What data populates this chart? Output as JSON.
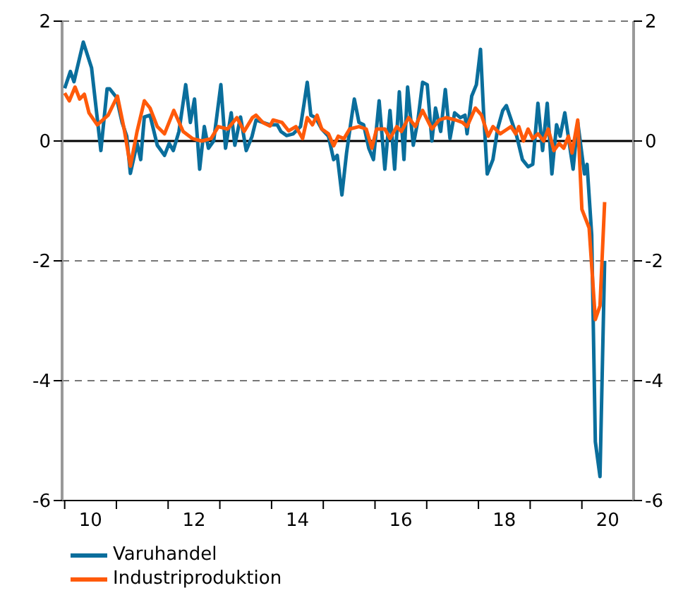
{
  "chart_data": {
    "type": "line",
    "xlim": [
      9.45,
      20.5
    ],
    "xticks": [
      {
        "value": 9.5,
        "label": null
      },
      10,
      {
        "value": 10.5,
        "label": null
      },
      {
        "value": 11.5,
        "label": null
      },
      12,
      {
        "value": 12.5,
        "label": null
      },
      {
        "value": 13.5,
        "label": null
      },
      14,
      {
        "value": 14.5,
        "label": null
      },
      {
        "value": 15.5,
        "label": null
      },
      16,
      {
        "value": 16.5,
        "label": null
      },
      {
        "value": 17.5,
        "label": null
      },
      18,
      {
        "value": 18.5,
        "label": null
      },
      {
        "value": 19.5,
        "label": null
      },
      20
    ],
    "ylim": [
      -6,
      2
    ],
    "yticks": [
      -6,
      -4,
      -2,
      0,
      2
    ],
    "y2lim": [
      -6,
      2
    ],
    "y2ticks": [
      -6,
      -4,
      -2,
      0,
      2
    ],
    "grid": "y",
    "legend": "bottom left",
    "line_style": "solid",
    "marker": "none",
    "ref_lines": [
      {
        "axis": "y",
        "value": 0,
        "color": "#000000"
      }
    ],
    "series": [
      {
        "name": "Varuhandel",
        "color": "#0a6e9c",
        "x": [
          9.5,
          9.61,
          9.68,
          9.86,
          10.02,
          10.2,
          10.32,
          10.37,
          10.5,
          10.61,
          10.7,
          10.77,
          10.9,
          10.97,
          11.04,
          11.15,
          11.29,
          11.43,
          11.52,
          11.6,
          11.71,
          11.84,
          11.93,
          12.01,
          12.11,
          12.2,
          12.28,
          12.38,
          12.52,
          12.61,
          12.72,
          12.79,
          12.9,
          13.01,
          13.12,
          13.2,
          13.33,
          13.47,
          13.61,
          13.68,
          13.79,
          13.92,
          14.06,
          14.13,
          14.19,
          14.26,
          14.35,
          14.47,
          14.6,
          14.7,
          14.77,
          14.86,
          14.95,
          15.04,
          15.1,
          15.19,
          15.28,
          15.38,
          15.47,
          15.58,
          15.69,
          15.79,
          15.88,
          15.97,
          16.06,
          16.13,
          16.24,
          16.33,
          16.42,
          16.51,
          16.6,
          16.67,
          16.77,
          16.86,
          16.95,
          17.04,
          17.15,
          17.24,
          17.28,
          17.37,
          17.46,
          17.54,
          17.6,
          17.67,
          17.78,
          17.87,
          17.97,
          18.04,
          18.15,
          18.24,
          18.35,
          18.46,
          18.55,
          18.65,
          18.74,
          18.83,
          18.92,
          19.01,
          19.08,
          19.17,
          19.25,
          19.33,
          19.42,
          19.55,
          19.6,
          19.69,
          19.76,
          19.85,
          19.94
        ],
        "values": [
          0.88,
          1.16,
          0.99,
          1.65,
          1.22,
          -0.16,
          0.87,
          0.87,
          0.73,
          0.31,
          0.08,
          -0.54,
          -0.04,
          -0.31,
          0.4,
          0.43,
          -0.07,
          -0.24,
          -0.04,
          -0.16,
          0.16,
          0.94,
          0.31,
          0.7,
          -0.47,
          0.24,
          -0.12,
          0,
          0.94,
          -0.12,
          0.47,
          -0.07,
          0.4,
          -0.16,
          0.07,
          0.35,
          0.31,
          0.27,
          0.27,
          0.16,
          0.09,
          0.12,
          0.24,
          0.63,
          0.98,
          0.43,
          0.39,
          0.2,
          0.08,
          -0.31,
          -0.24,
          -0.9,
          -0.2,
          0.35,
          0.7,
          0.31,
          0.27,
          -0.12,
          -0.31,
          0.67,
          -0.47,
          0.51,
          -0.47,
          0.82,
          -0.31,
          0.9,
          -0.07,
          0.35,
          0.98,
          0.94,
          0,
          0.55,
          0.16,
          0.86,
          0.04,
          0.47,
          0.39,
          0.43,
          0.12,
          0.75,
          0.94,
          1.53,
          0.47,
          -0.55,
          -0.31,
          0.2,
          0.51,
          0.59,
          0.31,
          0.08,
          -0.31,
          -0.43,
          -0.39,
          0.63,
          -0.16,
          0.63,
          -0.55,
          0.27,
          0.08,
          0.47,
          0,
          -0.47,
          0.31,
          -0.55,
          -0.39,
          -1.57,
          -5.02,
          -5.6,
          -2.0
        ]
      },
      {
        "name": "Industriproduktion",
        "color": "#ff5a0a",
        "x": [
          9.5,
          9.59,
          9.7,
          9.79,
          9.88,
          9.97,
          10.13,
          10.34,
          10.52,
          10.65,
          10.77,
          10.9,
          11.04,
          11.15,
          11.29,
          11.43,
          11.61,
          11.79,
          11.97,
          12.15,
          12.33,
          12.47,
          12.65,
          12.83,
          12.97,
          13.13,
          13.2,
          13.33,
          13.47,
          13.53,
          13.7,
          13.83,
          13.97,
          14.1,
          14.19,
          14.29,
          14.38,
          14.47,
          14.6,
          14.7,
          14.79,
          14.9,
          15.01,
          15.19,
          15.33,
          15.44,
          15.53,
          15.69,
          15.79,
          15.92,
          16.01,
          16.15,
          16.28,
          16.42,
          16.6,
          16.74,
          16.88,
          17.06,
          17.19,
          17.28,
          17.44,
          17.56,
          17.69,
          17.78,
          17.92,
          18.06,
          18.13,
          18.22,
          18.28,
          18.37,
          18.46,
          18.55,
          18.65,
          18.76,
          18.85,
          18.96,
          19.06,
          19.15,
          19.24,
          19.31,
          19.42,
          19.5,
          19.64,
          19.76,
          19.85,
          19.94
        ],
        "values": [
          0.8,
          0.67,
          0.9,
          0.7,
          0.78,
          0.47,
          0.27,
          0.43,
          0.75,
          0.2,
          -0.42,
          0.16,
          0.67,
          0.55,
          0.24,
          0.12,
          0.51,
          0.16,
          0.04,
          0,
          0.04,
          0.24,
          0.2,
          0.39,
          0.16,
          0.39,
          0.43,
          0.31,
          0.25,
          0.35,
          0.31,
          0.17,
          0.24,
          0.04,
          0.39,
          0.27,
          0.43,
          0.2,
          0.12,
          -0.08,
          0.08,
          0.04,
          0.2,
          0.24,
          0.2,
          -0.12,
          0.2,
          0.2,
          0.04,
          0.24,
          0.16,
          0.39,
          0.24,
          0.51,
          0.2,
          0.35,
          0.39,
          0.35,
          0.31,
          0.24,
          0.55,
          0.43,
          0.08,
          0.24,
          0.12,
          0.2,
          0.24,
          0.12,
          0.24,
          0,
          0.2,
          0.04,
          0.12,
          0,
          0.2,
          -0.16,
          -0.04,
          -0.12,
          0.08,
          -0.2,
          0.35,
          -1.14,
          -1.45,
          -2.98,
          -2.75,
          -1.02
        ]
      }
    ]
  }
}
